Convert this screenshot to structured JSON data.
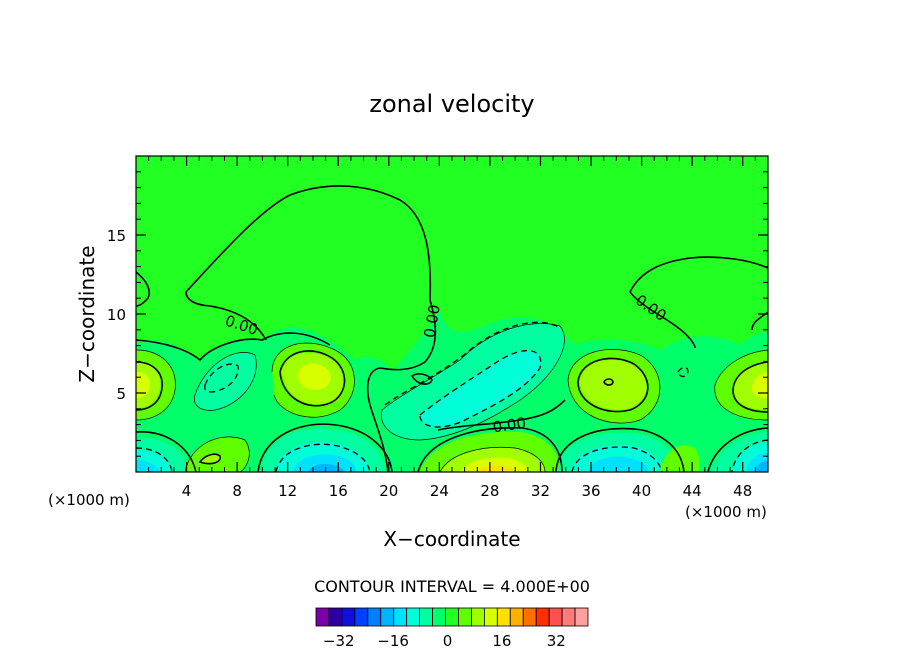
{
  "chart_data": {
    "type": "contour",
    "title": "zonal velocity",
    "xlabel": "X−coordinate",
    "ylabel": "Z−coordinate",
    "x_unit_label": "(×1000 m)",
    "y_unit_label": "(×1000 m)",
    "xlim": [
      0,
      50
    ],
    "ylim": [
      0,
      20
    ],
    "x_ticks": [
      4,
      8,
      12,
      16,
      20,
      24,
      28,
      32,
      36,
      40,
      44,
      48
    ],
    "x_tick_labels": [
      "4",
      "8",
      "12",
      "16",
      "20",
      "24",
      "28",
      "32",
      "36",
      "40",
      "44",
      "48"
    ],
    "y_ticks": [
      5,
      10,
      15
    ],
    "y_tick_labels": [
      "5",
      "10",
      "15"
    ],
    "zero_contour_label": "0.00",
    "contour_interval_text": "CONTOUR INTERVAL = 4.000E+00",
    "contour_interval": 4,
    "colorbar": {
      "min": -40,
      "max": 40,
      "step": 4,
      "tick_values": [
        -32,
        -16,
        0,
        16,
        32
      ],
      "tick_labels": [
        "−32",
        "−16",
        "0",
        "16",
        "32"
      ],
      "colors": [
        "#7a00a8",
        "#2c00a0",
        "#1010d8",
        "#0040ff",
        "#0080ff",
        "#00b4ff",
        "#00e0ff",
        "#00ffd8",
        "#00ffa0",
        "#00ff68",
        "#22ff22",
        "#60ff00",
        "#a0ff00",
        "#d8ff00",
        "#ffe000",
        "#ffb000",
        "#ff7000",
        "#ff3000",
        "#ff5050",
        "#ff7a7a",
        "#ffa0a0"
      ]
    },
    "features": [
      {
        "x": 0.7,
        "z": 5.8,
        "value": 12
      },
      {
        "x": 7.0,
        "z": 6.0,
        "value": -6
      },
      {
        "x": 14.2,
        "z": 6.1,
        "value": 14
      },
      {
        "x": 26.5,
        "z": 4.8,
        "value": -6
      },
      {
        "x": 36.5,
        "z": 5.8,
        "value": 10
      },
      {
        "x": 49.2,
        "z": 5.8,
        "value": 12
      },
      {
        "x": 1.2,
        "z": 1.2,
        "value": -16
      },
      {
        "x": 5.5,
        "z": 1.2,
        "value": 10
      },
      {
        "x": 14.3,
        "z": 1.0,
        "value": -20
      },
      {
        "x": 29.0,
        "z": 0.8,
        "value": 16
      },
      {
        "x": 37.5,
        "z": 1.0,
        "value": -18
      },
      {
        "x": 49.2,
        "z": 1.0,
        "value": -18
      }
    ]
  }
}
